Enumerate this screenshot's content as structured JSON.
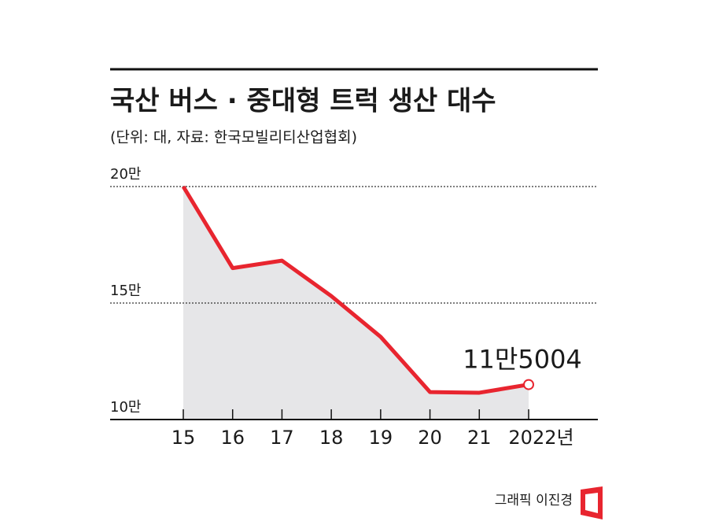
{
  "chart_data": {
    "type": "line",
    "title": "국산 버스 · 중대형 트럭 생산 대수",
    "subtitle": "(단위: 대, 자료: 한국모빌리티산업협회)",
    "credit": "그래픽 이진경",
    "categories": [
      "15",
      "16",
      "17",
      "18",
      "19",
      "20",
      "21",
      "2022년"
    ],
    "values": [
      200000,
      165000,
      168200,
      153000,
      135500,
      111800,
      111500,
      115004
    ],
    "value_labels": [
      null,
      null,
      null,
      null,
      null,
      null,
      null,
      "11만5004"
    ],
    "color": "#e8252f",
    "area_color": "#e6e6e8",
    "ylim": [
      100000,
      200000
    ],
    "yticks": [
      {
        "value": 100000,
        "label": "10만"
      },
      {
        "value": 150000,
        "label": "15만"
      },
      {
        "value": 200000,
        "label": "20만"
      }
    ],
    "grid": true
  }
}
